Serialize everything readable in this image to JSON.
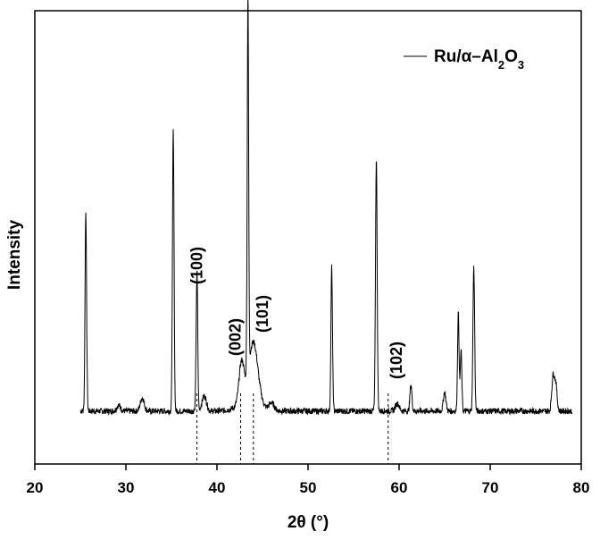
{
  "chart_data": {
    "type": "line",
    "title": "",
    "xlabel": "2θ (°)",
    "ylabel": "Intensity",
    "xlim": [
      20,
      80
    ],
    "ylim": [
      0,
      100
    ],
    "x_ticks": [
      "20",
      "30",
      "40",
      "50",
      "60",
      "70",
      "80"
    ],
    "y_ticks_visible": false,
    "grid": false,
    "legend": {
      "placement": "top-right",
      "entries": [
        "Ru/α–Al2O3"
      ]
    },
    "series": [
      {
        "name": "Ru/α–Al2O3",
        "baseline": 14,
        "noise_amplitude": 0.8,
        "peaks": [
          {
            "x": 25.6,
            "height": 53,
            "width": 0.12
          },
          {
            "x": 29.2,
            "height": 1.5,
            "width": 0.3
          },
          {
            "x": 31.8,
            "height": 3.5,
            "width": 0.3
          },
          {
            "x": 35.2,
            "height": 74,
            "width": 0.12
          },
          {
            "x": 37.8,
            "height": 37,
            "width": 0.12
          },
          {
            "x": 38.6,
            "height": 4,
            "width": 0.35
          },
          {
            "x": 42.7,
            "height": 11,
            "width": 0.4
          },
          {
            "x": 43.4,
            "height": 100,
            "width": 0.11
          },
          {
            "x": 44.0,
            "height": 16,
            "width": 0.7
          },
          {
            "x": 46.0,
            "height": 2,
            "width": 0.4
          },
          {
            "x": 52.6,
            "height": 38,
            "width": 0.12
          },
          {
            "x": 57.5,
            "height": 67,
            "width": 0.13
          },
          {
            "x": 59.8,
            "height": 2,
            "width": 0.3
          },
          {
            "x": 61.3,
            "height": 7,
            "width": 0.15
          },
          {
            "x": 65.0,
            "height": 5,
            "width": 0.2
          },
          {
            "x": 66.5,
            "height": 26,
            "width": 0.12
          },
          {
            "x": 66.8,
            "height": 16,
            "width": 0.12
          },
          {
            "x": 68.2,
            "height": 38,
            "width": 0.13
          },
          {
            "x": 76.9,
            "height": 9,
            "width": 0.2
          },
          {
            "x": 77.2,
            "height": 7,
            "width": 0.2
          }
        ]
      }
    ],
    "reference_lines": [
      {
        "x": 37.8,
        "label": "(100)"
      },
      {
        "x": 42.6,
        "label": "(002)"
      },
      {
        "x": 44.0,
        "label": "(101)"
      },
      {
        "x": 58.8,
        "label": "(102)"
      }
    ]
  }
}
